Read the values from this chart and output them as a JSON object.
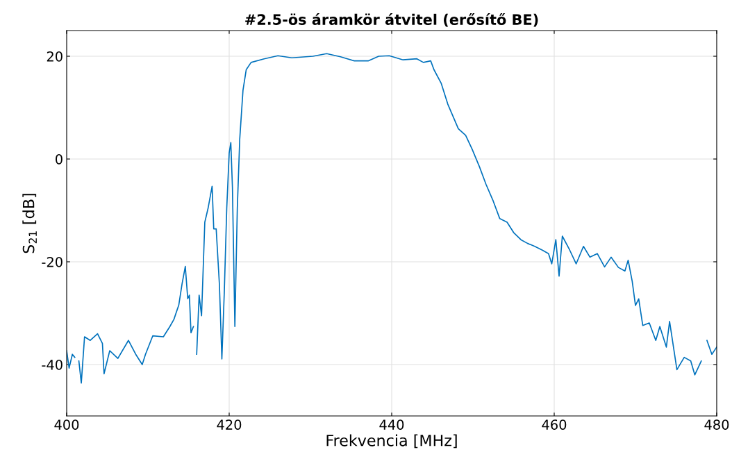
{
  "chart_data": {
    "type": "line",
    "title": "#2.5-ös áramkör átvitel (erősítő BE)",
    "xlabel": "Frekvencia [MHz]",
    "ylabel": "S$_{21}$ [dB]",
    "xlim": [
      400,
      480
    ],
    "ylim": [
      -50,
      25
    ],
    "xticks": [
      400,
      420,
      440,
      460,
      480
    ],
    "yticks": [
      -40,
      -20,
      0,
      20
    ],
    "grid": true,
    "series": [
      {
        "color": "#0072bd",
        "x": [
          400,
          400.3,
          400.7,
          401.0,
          401.2,
          401.5,
          401.8,
          402.2,
          402.9,
          403.8,
          404.4,
          404.6,
          405.3,
          406.3,
          407.6,
          408.5,
          409.3,
          409.7,
          410.6,
          411.9,
          412.7,
          413.2,
          413.8,
          414.2,
          414.6,
          414.9,
          415.1,
          415.3,
          415.6,
          415.7,
          416.0,
          416.3,
          416.6,
          417.0,
          417.4,
          417.9,
          418.1,
          418.4,
          418.8,
          419.1,
          419.4,
          419.7,
          420.0,
          420.2,
          420.4,
          420.7,
          421.0,
          421.3,
          421.7,
          422.1,
          422.7,
          424.3,
          426.0,
          427.7,
          430.3,
          432.0,
          433.7,
          435.4,
          437.1,
          438.4,
          439.7,
          441.4,
          443.1,
          443.9,
          444.8,
          445.2,
          446.1,
          446.9,
          448.2,
          449.1,
          449.9,
          450.8,
          451.6,
          452.5,
          453.3,
          454.2,
          455.0,
          455.9,
          456.7,
          457.6,
          458.5,
          459.3,
          459.7,
          460.2,
          460.6,
          461.0,
          461.9,
          462.7,
          463.6,
          464.4,
          465.3,
          466.2,
          467.0,
          467.9,
          468.7,
          469.1,
          469.6,
          470.0,
          470.4,
          470.9,
          471.7,
          472.5,
          473.0,
          473.8,
          474.2,
          475.1,
          476.0,
          476.8,
          477.3,
          478.1,
          478.4,
          478.8,
          479.4,
          480
        ],
        "values": [
          -37.3,
          -40.7,
          -38,
          -38.6,
          null,
          -39.3,
          -43.6,
          -34.6,
          -35.3,
          -34,
          -35.9,
          -41.8,
          -37.3,
          -38.8,
          -35.3,
          -38,
          -40,
          -38,
          -34.4,
          -34.6,
          -32.6,
          -31.2,
          -28.4,
          -24.3,
          -20.9,
          -27.2,
          -26.5,
          -33.8,
          -32.6,
          null,
          -38,
          -26.5,
          -30.5,
          -12.3,
          -9.6,
          -5.3,
          -13.6,
          -13.6,
          -24.5,
          -38.9,
          -25.8,
          -9.6,
          1.2,
          3.2,
          -5.5,
          -32.6,
          -9.6,
          3.9,
          13.4,
          17.4,
          18.8,
          19.5,
          20.1,
          19.7,
          20,
          20.5,
          19.9,
          19.1,
          19.1,
          20,
          20.1,
          19.3,
          19.5,
          18.8,
          19.1,
          17.4,
          14.7,
          10.7,
          5.9,
          4.6,
          1.9,
          -1.5,
          -4.9,
          -8.2,
          -11.6,
          -12.3,
          -14.3,
          -15.7,
          -16.4,
          -17,
          -17.7,
          -18.4,
          -20.4,
          -15.7,
          -22.8,
          -15,
          -17.7,
          -20.4,
          -17,
          -19.1,
          -18.4,
          -21,
          -19.1,
          -21.1,
          -21.8,
          -19.7,
          -23.8,
          -28.5,
          -27.2,
          -32.4,
          -31.9,
          -35.3,
          -32.6,
          -36.6,
          -31.6,
          -41,
          -38.6,
          -39.3,
          -42,
          -39.3,
          null,
          -35.3,
          -38,
          -36.6
        ]
      }
    ]
  }
}
